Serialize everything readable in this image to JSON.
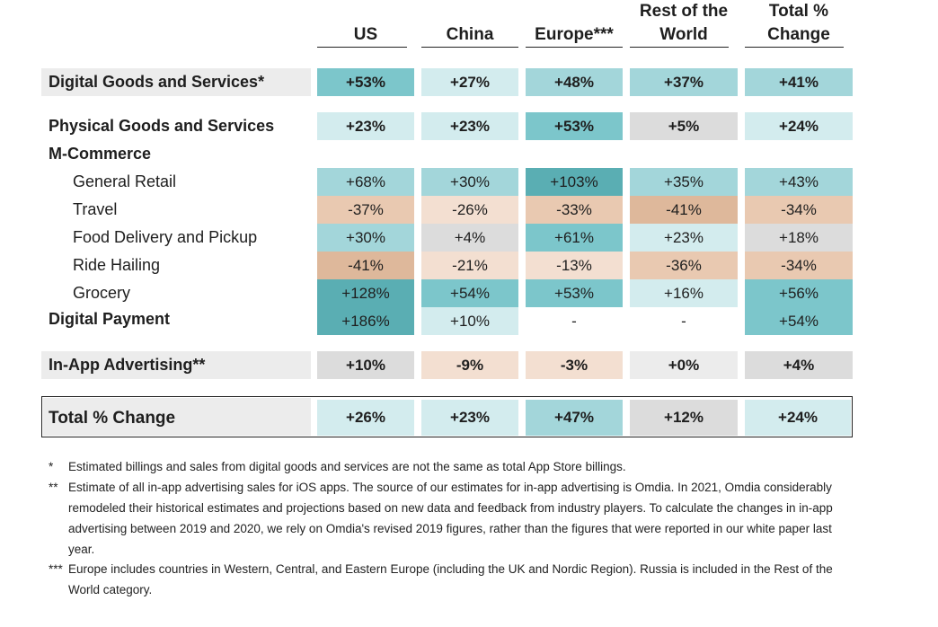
{
  "headers": {
    "us": "US",
    "china": "China",
    "europe": "Europe***",
    "row_line1": "Rest of the",
    "row_line2": "World",
    "total_line1": "Total %",
    "total_line2": "Change"
  },
  "rows": {
    "digital_goods": {
      "label": "Digital Goods and Services*",
      "us": "+53%",
      "china": "+27%",
      "europe": "+48%",
      "rest": "+37%",
      "total": "+41%"
    },
    "physical_goods": {
      "label": "Physical Goods and Services",
      "us": "+23%",
      "china": "+23%",
      "europe": "+53%",
      "rest": "+5%",
      "total": "+24%"
    },
    "m_commerce": {
      "label": "M-Commerce"
    },
    "general_retail": {
      "label": "General Retail",
      "us": "+68%",
      "china": "+30%",
      "europe": "+103%",
      "rest": "+35%",
      "total": "+43%"
    },
    "travel": {
      "label": "Travel",
      "us": "-37%",
      "china": "-26%",
      "europe": "-33%",
      "rest": "-41%",
      "total": "-34%"
    },
    "food_delivery": {
      "label": "Food Delivery and Pickup",
      "us": "+30%",
      "china": "+4%",
      "europe": "+61%",
      "rest": "+23%",
      "total": "+18%"
    },
    "ride_hailing": {
      "label": "Ride Hailing",
      "us": "-41%",
      "china": "-21%",
      "europe": "-13%",
      "rest": "-36%",
      "total": "-34%"
    },
    "grocery": {
      "label": "Grocery",
      "us": "+128%",
      "china": "+54%",
      "europe": "+53%",
      "rest": "+16%",
      "total": "+56%"
    },
    "digital_payment": {
      "label": "Digital Payment",
      "us": "+186%",
      "china": "+10%",
      "europe": "-",
      "rest": "-",
      "total": "+54%"
    },
    "in_app_advertising": {
      "label": "In-App Advertising**",
      "us": "+10%",
      "china": "-9%",
      "europe": "-3%",
      "rest": "+0%",
      "total": "+4%"
    },
    "total_change": {
      "label": "Total % Change",
      "us": "+26%",
      "china": "+23%",
      "europe": "+47%",
      "rest": "+12%",
      "total": "+24%"
    }
  },
  "footnotes": {
    "one": {
      "mark": "*",
      "text": "Estimated billings and sales from digital goods and services are not the same as total App Store billings."
    },
    "two": {
      "mark": "**",
      "text": "Estimate of all in-app advertising sales for iOS apps. The source of our estimates for in-app advertising is Omdia. In 2021, Omdia considerably remodeled their historical estimates and projections based on new data and feedback from industry players. To calculate the changes in in-app advertising between 2019 and 2020, we rely on Omdia's revised 2019 figures, rather than the figures that were reported in our white paper last year."
    },
    "three": {
      "mark": "***",
      "text": "Europe includes countries in Western, Central, and Eastern Europe (including the UK and Nordic Region). Russia is included in the Rest of the World category."
    }
  },
  "colors": {
    "teal_dark": "#5aaeb3",
    "teal_mid": "#7cc6cb",
    "teal": "#a3d6da",
    "teal_light": "#d3ecee",
    "grey": "#dcdcdc",
    "peach_dark": "#deb89b",
    "peach": "#e9c9b1",
    "peach_light": "#f3dfd1",
    "label_band": "#ececec"
  }
}
